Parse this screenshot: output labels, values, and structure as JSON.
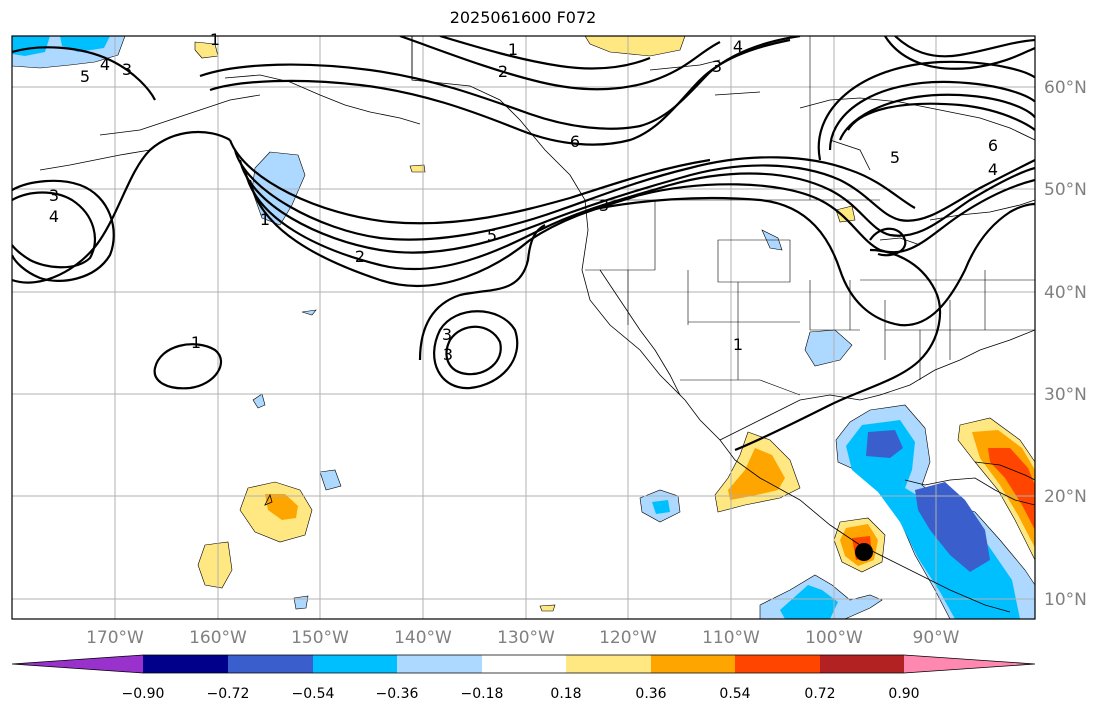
{
  "title": "2025061600 F072",
  "lon_ticks": [
    "170°W",
    "160°W",
    "150°W",
    "140°W",
    "130°W",
    "120°W",
    "110°W",
    "100°W",
    "90°W"
  ],
  "lat_ticks": [
    "60°N",
    "50°N",
    "40°N",
    "30°N",
    "20°N",
    "10°N"
  ],
  "colorbar": {
    "tick_labels": [
      "−0.90",
      "−0.72",
      "−0.54",
      "−0.36",
      "−0.18",
      "0.18",
      "0.36",
      "0.54",
      "0.72",
      "0.90"
    ],
    "colors": [
      "#9932cc",
      "#00008b",
      "#3a5fcd",
      "#00bfff",
      "#add8ff",
      "#ffffff",
      "#ffe882",
      "#ffa500",
      "#ff4500",
      "#b22222",
      "#ff88b0"
    ]
  },
  "contour_labels": [
    "1",
    "2",
    "1",
    "4",
    "3",
    "5",
    "3",
    "4",
    "6",
    "5",
    "6",
    "4",
    "3",
    "4",
    "1",
    "2",
    "5",
    "3",
    "1",
    "3",
    "3",
    "1"
  ],
  "colors": {
    "contour": "#000000",
    "grid": "#b0b0b0",
    "axis_text": "#808080"
  }
}
